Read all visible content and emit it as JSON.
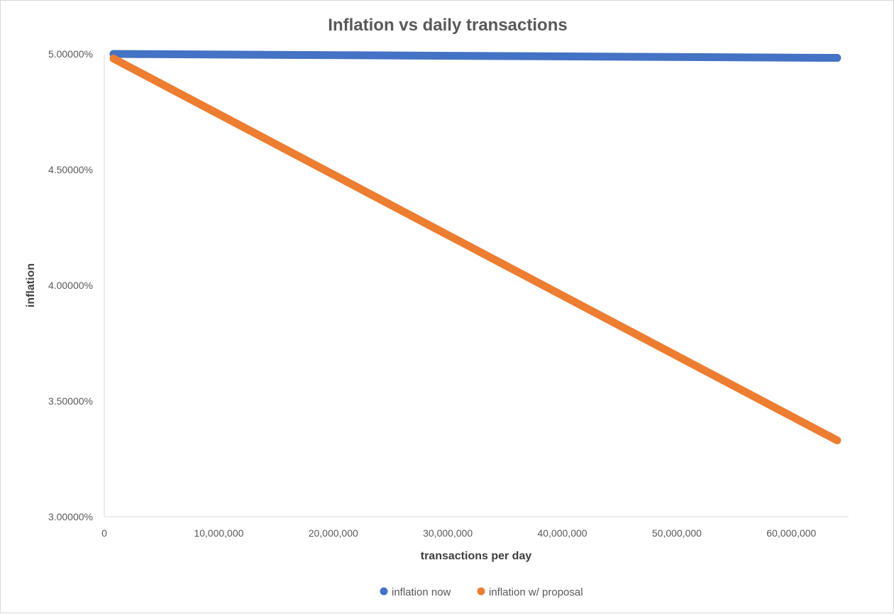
{
  "chart_data": {
    "type": "line",
    "title": "Inflation vs daily transactions",
    "xlabel": "transactions per day",
    "ylabel": "inflation",
    "xlim": [
      0,
      65000000
    ],
    "ylim": [
      3.0,
      5.0
    ],
    "x_ticks": [
      0,
      10000000,
      20000000,
      30000000,
      40000000,
      50000000,
      60000000
    ],
    "x_tick_labels": [
      "0",
      "10,000,000",
      "20,000,000",
      "30,000,000",
      "40,000,000",
      "50,000,000",
      "60,000,000"
    ],
    "y_ticks": [
      3.0,
      3.5,
      4.0,
      4.5,
      5.0
    ],
    "y_tick_labels": [
      "3.00000%",
      "3.50000%",
      "4.00000%",
      "4.50000%",
      "5.00000%"
    ],
    "legend_position": "bottom",
    "series": [
      {
        "name": "inflation now",
        "color": "#4472c4",
        "x": [
          800000,
          64000000
        ],
        "y": [
          5.0,
          4.983
        ]
      },
      {
        "name": "inflation w/ proposal",
        "color": "#ed7d31",
        "x": [
          800000,
          64000000
        ],
        "y": [
          4.98,
          3.33
        ]
      }
    ]
  }
}
